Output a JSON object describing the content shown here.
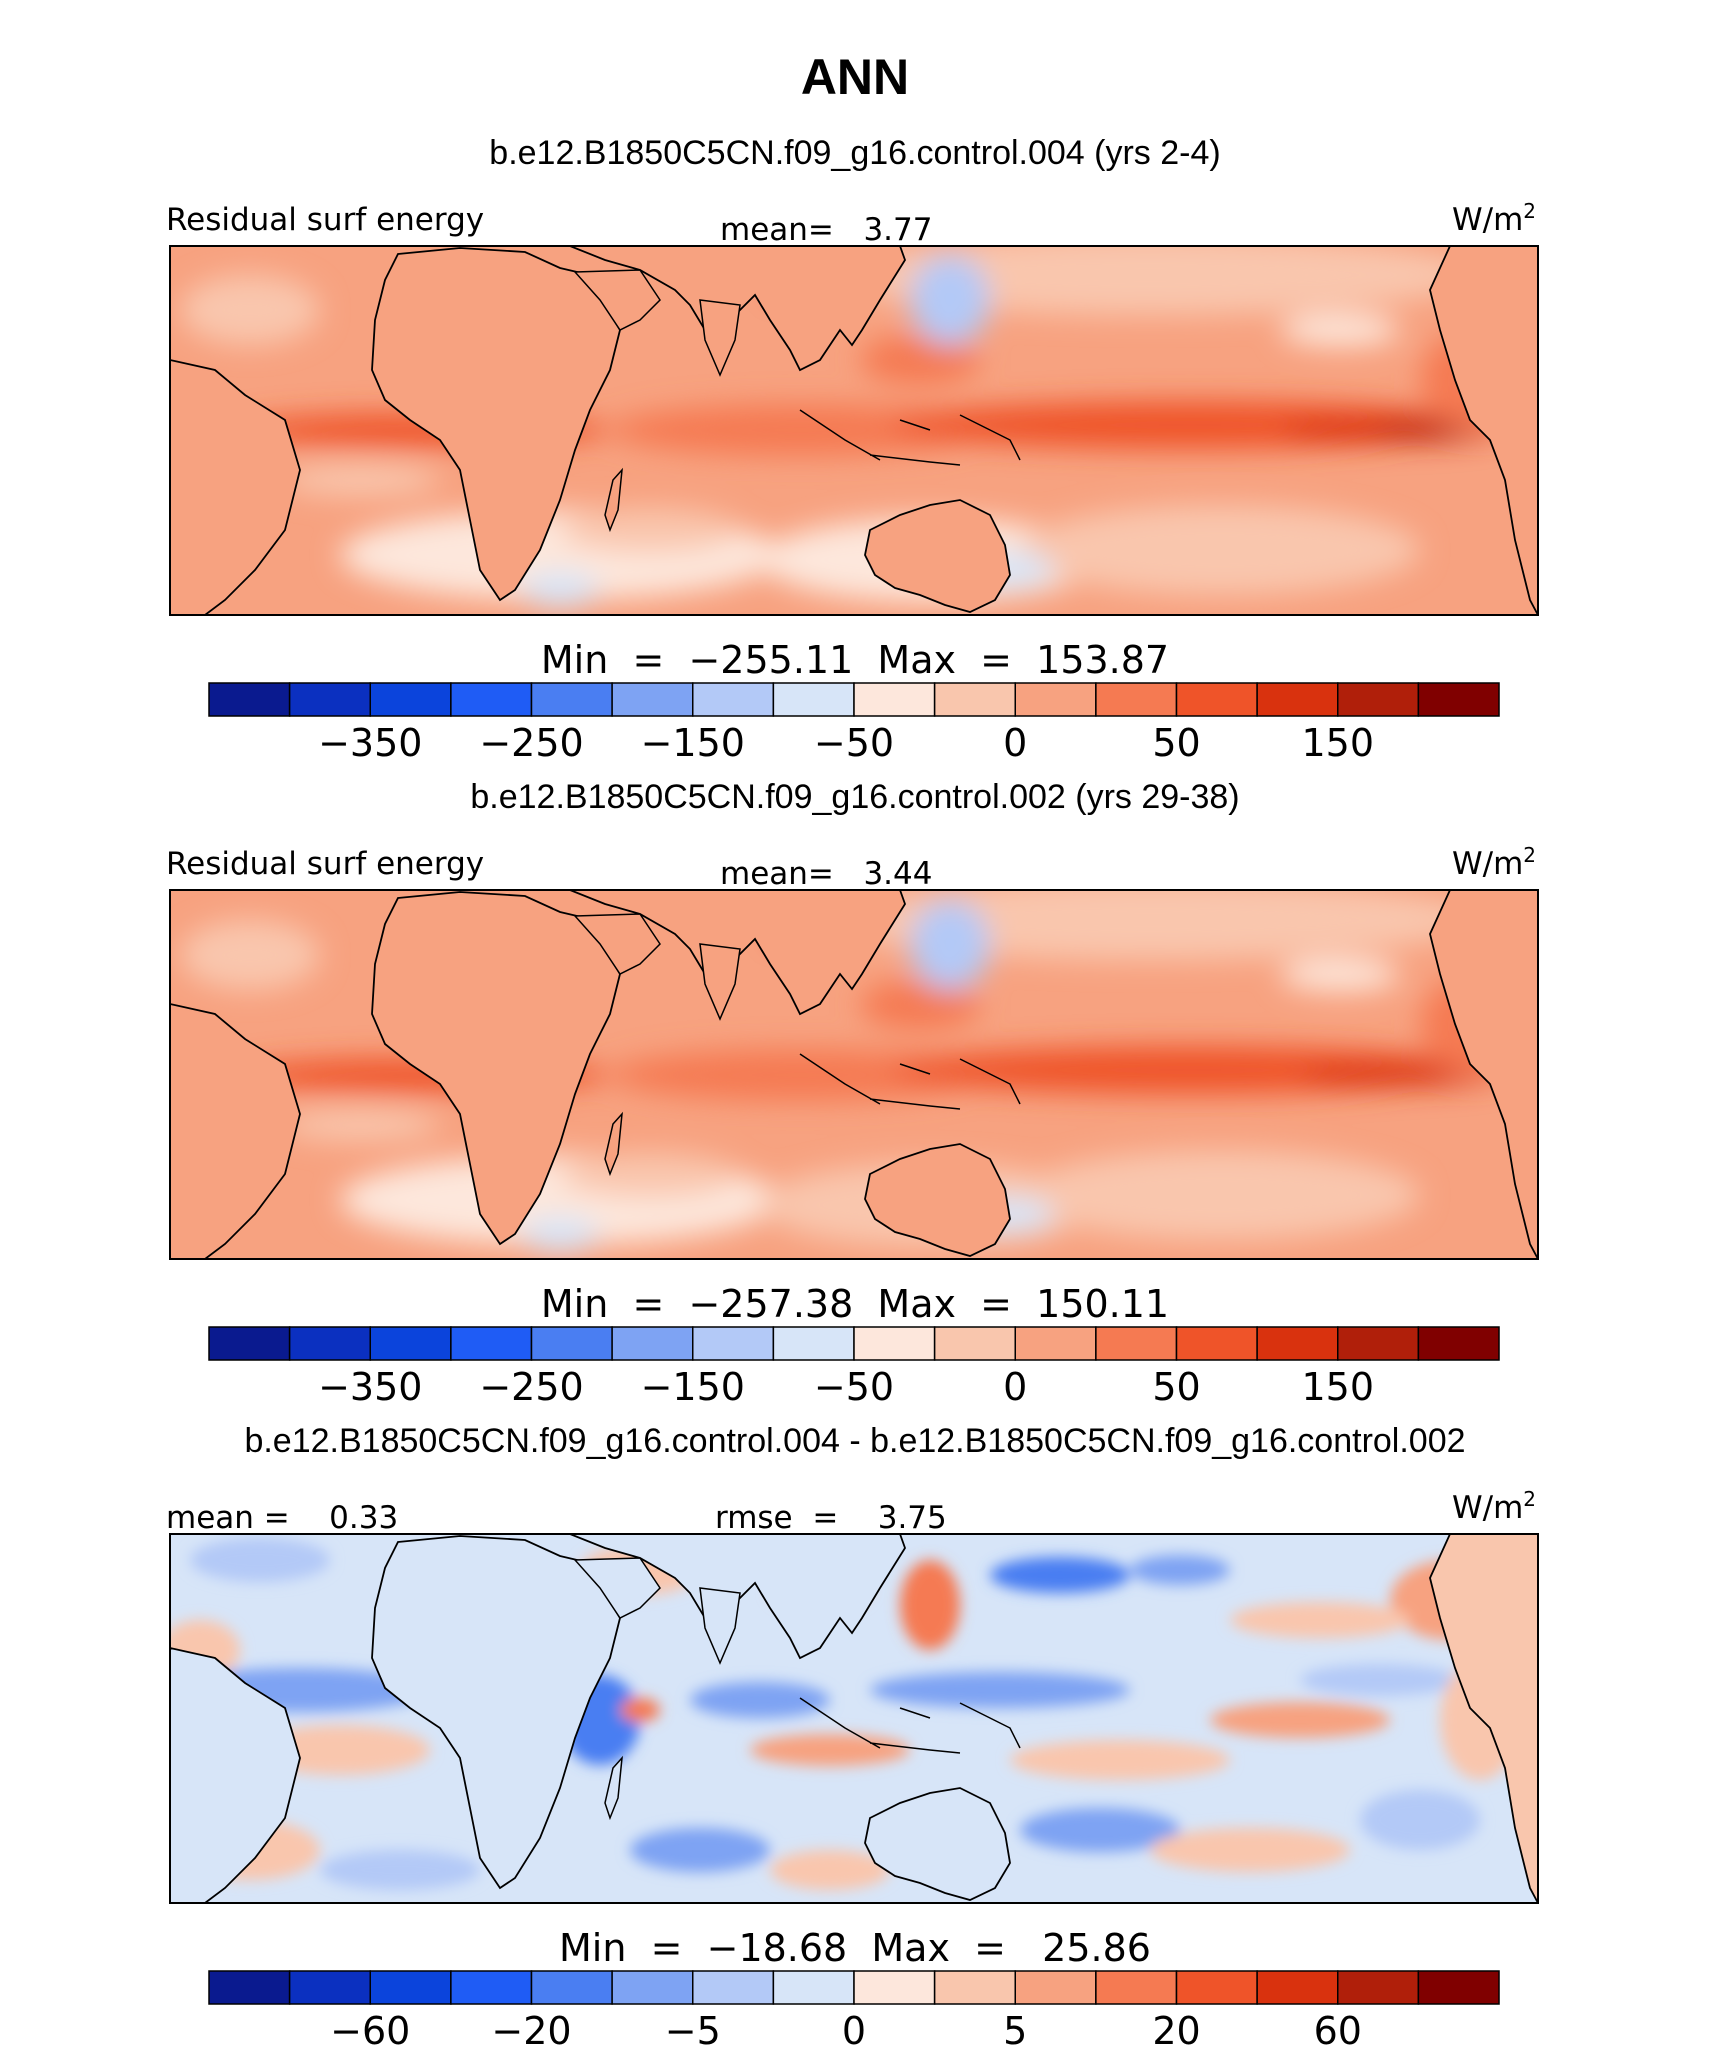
{
  "chart_data": {
    "type": "heatmap",
    "title": "ANN",
    "colors": {
      "abs": [
        "#0a1a8f",
        "#0b30c0",
        "#0b44dc",
        "#1f5cf5",
        "#4a7ef2",
        "#7ea3f3",
        "#b3c9f7",
        "#d7e5f8",
        "#fde7dc",
        "#f9c6ad",
        "#f7a280",
        "#f57a52",
        "#ef5429",
        "#d9320e",
        "#b01f0a",
        "#800000"
      ],
      "diff": [
        "#0a1a8f",
        "#0b30c0",
        "#0b44dc",
        "#1f5cf5",
        "#4a7ef2",
        "#7ea3f3",
        "#b3c9f7",
        "#d7e5f8",
        "#fde7dc",
        "#f9c6ad",
        "#f7a280",
        "#f57a52",
        "#ef5429",
        "#d9320e",
        "#b01f0a",
        "#800000"
      ],
      "coast": "#000000"
    },
    "panels": [
      {
        "name": "case",
        "title": "b.e12.B1850C5CN.f09_g16.control.004 (yrs 2-4)",
        "left_label": "Residual surf energy",
        "center_label": "mean=   3.77",
        "units": "W/m",
        "units_sup": "2",
        "minmax": "Min  =  −255.11  Max  =  153.87",
        "ticks": [
          "−350",
          "−250",
          "−150",
          "−50",
          "0",
          "50",
          "150"
        ],
        "mean": 3.77,
        "min": -255.11,
        "max": 153.87
      },
      {
        "name": "control",
        "title": "b.e12.B1850C5CN.f09_g16.control.002 (yrs 29-38)",
        "left_label": "Residual surf energy",
        "center_label": "mean=   3.44",
        "units": "W/m",
        "units_sup": "2",
        "minmax": "Min  =  −257.38  Max  =  150.11",
        "ticks": [
          "−350",
          "−250",
          "−150",
          "−50",
          "0",
          "50",
          "150"
        ],
        "mean": 3.44,
        "min": -257.38,
        "max": 150.11
      },
      {
        "name": "diff",
        "title": "b.e12.B1850C5CN.f09_g16.control.004 - b.e12.B1850C5CN.f09_g16.control.002",
        "left_label": "mean =    0.33",
        "center_label": "rmse  =    3.75",
        "units": "W/m",
        "units_sup": "2",
        "minmax": "Min  =  −18.68  Max  =   25.86",
        "ticks": [
          "−60",
          "−20",
          "−5",
          "0",
          "5",
          "20",
          "60"
        ],
        "mean": 0.33,
        "rmse": 3.75,
        "min": -18.68,
        "max": 25.86
      }
    ]
  }
}
